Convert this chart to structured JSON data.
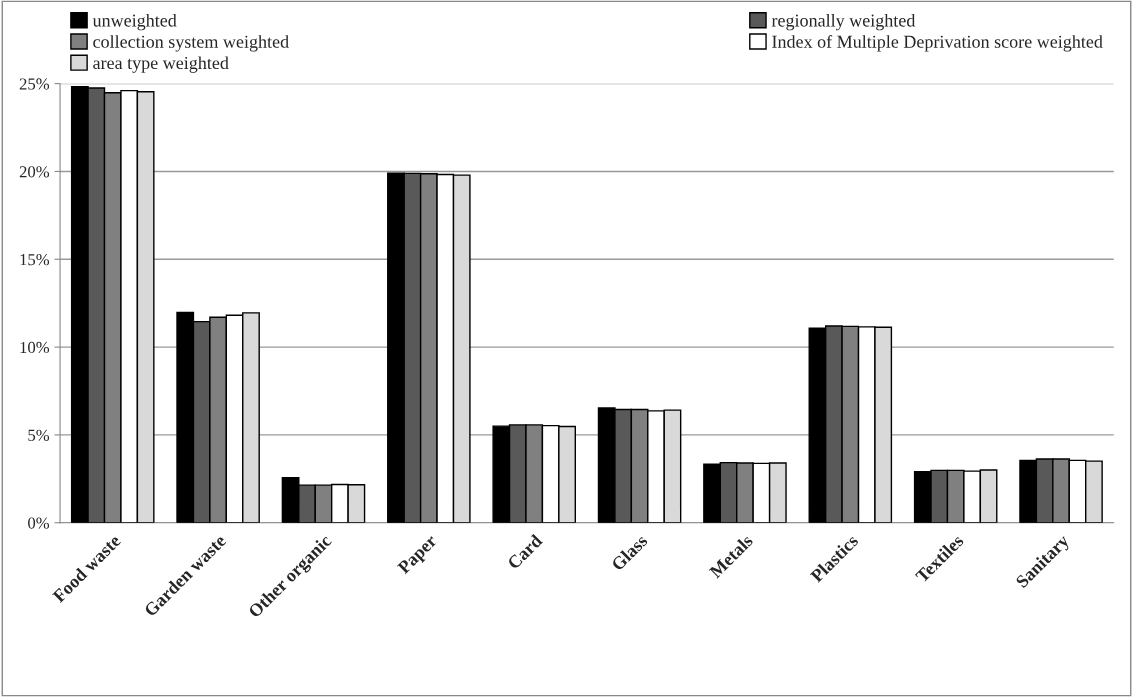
{
  "chart_data": {
    "type": "bar",
    "categories": [
      "Food waste",
      "Garden waste",
      "Other organic",
      "Paper",
      "Card",
      "Glass",
      "Metals",
      "Plastics",
      "Textiles",
      "Sanitary"
    ],
    "series": [
      {
        "name": "unweighted",
        "color": "#000000",
        "values": [
          24.83,
          11.97,
          2.56,
          19.9,
          5.5,
          6.53,
          3.34,
          11.07,
          2.9,
          3.55
        ]
      },
      {
        "name": "regionally weighted",
        "color": "#595959",
        "values": [
          24.75,
          11.45,
          2.14,
          19.89,
          5.57,
          6.45,
          3.42,
          11.2,
          2.98,
          3.63
        ]
      },
      {
        "name": "collection system weighted",
        "color": "#808080",
        "values": [
          24.48,
          11.7,
          2.14,
          19.87,
          5.57,
          6.45,
          3.4,
          11.18,
          2.98,
          3.63
        ]
      },
      {
        "name": "Index of Multiple Deprivation score weighted",
        "color": "#ffffff",
        "values": [
          24.6,
          11.81,
          2.18,
          19.83,
          5.53,
          6.37,
          3.38,
          11.15,
          2.94,
          3.55
        ]
      },
      {
        "name": "area type weighted",
        "color": "#d9d9d9",
        "values": [
          24.54,
          11.95,
          2.16,
          19.79,
          5.48,
          6.41,
          3.4,
          11.13,
          3.0,
          3.51
        ]
      }
    ],
    "ylim": [
      0,
      25
    ],
    "yticks": [
      {
        "value": 0,
        "label": "0%"
      },
      {
        "value": 5,
        "label": "5%"
      },
      {
        "value": 10,
        "label": "10%"
      },
      {
        "value": 15,
        "label": "15%"
      },
      {
        "value": 20,
        "label": "20%"
      },
      {
        "value": 25,
        "label": "25%"
      }
    ],
    "grid": "y",
    "legend": "top"
  }
}
